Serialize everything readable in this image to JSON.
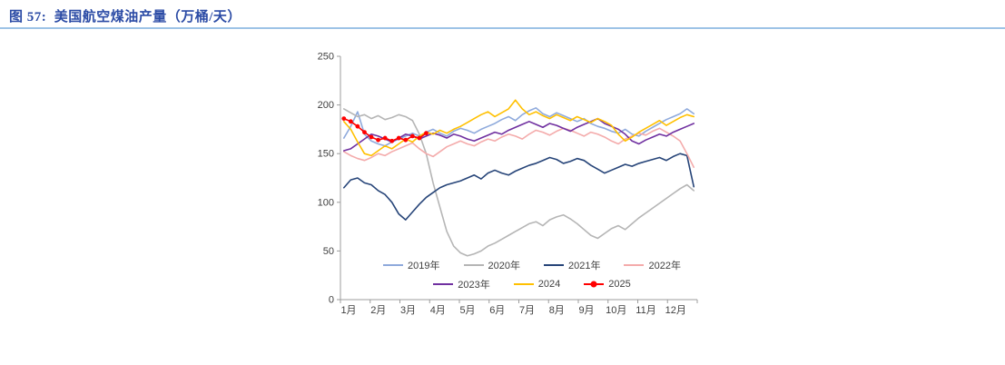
{
  "page": {
    "title": "图 57:  美国航空煤油产量（万桶/天）"
  },
  "chart_data": {
    "type": "line",
    "title": "美国航空煤油产量（万桶/天）",
    "x_months": [
      "1月",
      "2月",
      "3月",
      "4月",
      "5月",
      "6月",
      "7月",
      "8月",
      "9月",
      "10月",
      "11月",
      "12月"
    ],
    "ylim": [
      0,
      250
    ],
    "yticks": [
      0,
      50,
      100,
      150,
      200,
      250
    ],
    "weeks_per_year": 52,
    "grid": false,
    "legend_position": "inside-bottom",
    "series": [
      {
        "name": "2019年",
        "color": "#8FAADC",
        "marker": false,
        "values": [
          166,
          178,
          193,
          170,
          163,
          160,
          158,
          162,
          165,
          168,
          171,
          168,
          172,
          175,
          171,
          168,
          173,
          176,
          174,
          171,
          175,
          178,
          181,
          185,
          188,
          184,
          190,
          194,
          197,
          191,
          188,
          192,
          189,
          186,
          183,
          186,
          181,
          178,
          176,
          173,
          171,
          175,
          170,
          168,
          173,
          177,
          181,
          185,
          188,
          191,
          196,
          191
        ]
      },
      {
        "name": "2020年",
        "color": "#B5B5B5",
        "marker": false,
        "values": [
          196,
          192,
          188,
          190,
          186,
          189,
          185,
          187,
          190,
          188,
          184,
          170,
          150,
          120,
          95,
          70,
          55,
          48,
          45,
          47,
          50,
          55,
          58,
          62,
          66,
          70,
          74,
          78,
          80,
          76,
          82,
          85,
          87,
          83,
          78,
          72,
          66,
          63,
          68,
          73,
          76,
          72,
          78,
          84,
          89,
          94,
          99,
          104,
          109,
          114,
          118,
          112
        ]
      },
      {
        "name": "2021年",
        "color": "#264478",
        "marker": false,
        "values": [
          115,
          123,
          125,
          120,
          118,
          112,
          108,
          100,
          88,
          82,
          90,
          98,
          105,
          110,
          115,
          118,
          120,
          122,
          125,
          128,
          124,
          130,
          133,
          130,
          128,
          132,
          135,
          138,
          140,
          143,
          146,
          144,
          140,
          142,
          145,
          143,
          138,
          134,
          130,
          133,
          136,
          139,
          137,
          140,
          142,
          144,
          146,
          143,
          147,
          150,
          148,
          116
        ]
      },
      {
        "name": "2022年",
        "color": "#F4ABAB",
        "marker": false,
        "values": [
          152,
          148,
          145,
          143,
          146,
          150,
          148,
          152,
          155,
          158,
          161,
          155,
          150,
          147,
          152,
          157,
          160,
          163,
          160,
          158,
          162,
          165,
          163,
          167,
          170,
          168,
          165,
          170,
          174,
          172,
          169,
          173,
          176,
          174,
          171,
          168,
          172,
          170,
          167,
          163,
          160,
          165,
          168,
          171,
          169,
          173,
          176,
          172,
          168,
          163,
          150,
          136
        ]
      },
      {
        "name": "2023年",
        "color": "#7030A0",
        "marker": false,
        "values": [
          153,
          155,
          160,
          165,
          170,
          168,
          165,
          162,
          166,
          170,
          168,
          165,
          168,
          171,
          169,
          166,
          170,
          168,
          165,
          163,
          166,
          169,
          172,
          170,
          174,
          177,
          180,
          183,
          180,
          177,
          181,
          179,
          176,
          173,
          177,
          180,
          183,
          186,
          181,
          178,
          175,
          170,
          163,
          160,
          164,
          167,
          170,
          168,
          172,
          175,
          178,
          181
        ]
      },
      {
        "name": "2024",
        "color": "#FFC000",
        "marker": false,
        "values": [
          183,
          175,
          162,
          150,
          148,
          153,
          158,
          155,
          160,
          165,
          162,
          168,
          172,
          170,
          174,
          171,
          175,
          178,
          182,
          186,
          190,
          193,
          188,
          192,
          196,
          205,
          196,
          190,
          193,
          189,
          186,
          190,
          187,
          184,
          188,
          185,
          182,
          186,
          183,
          179,
          170,
          163,
          167,
          172,
          176,
          180,
          184,
          179,
          183,
          187,
          190,
          188
        ]
      },
      {
        "name": "2025",
        "color": "#FF0000",
        "marker": true,
        "values": [
          186,
          183,
          178,
          172,
          167,
          164,
          166,
          163,
          166,
          164,
          168,
          166,
          171
        ]
      }
    ]
  }
}
